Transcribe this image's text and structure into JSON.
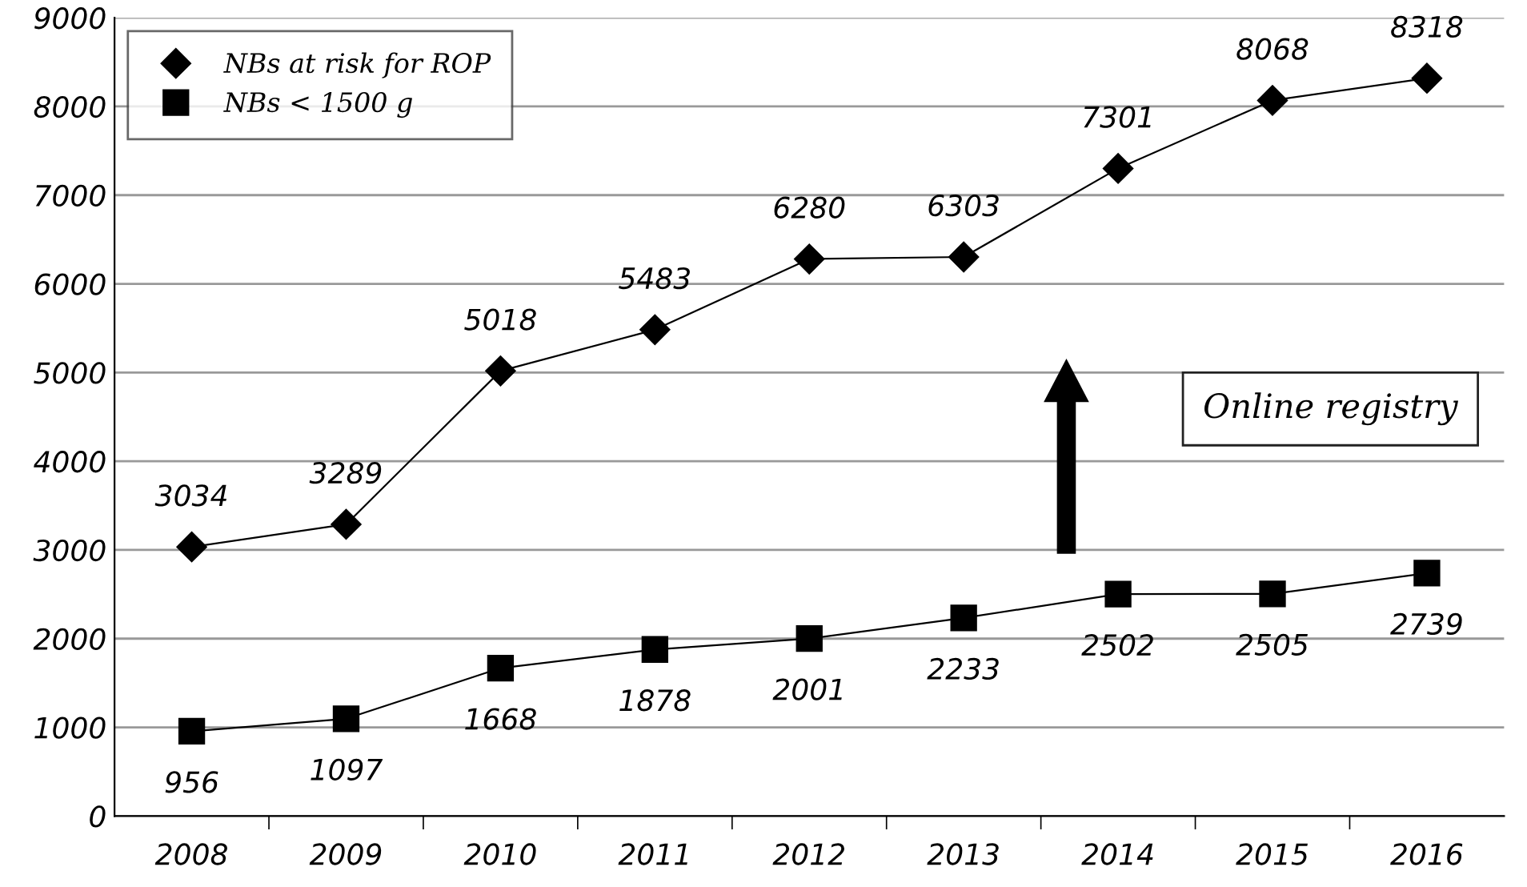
{
  "chart_data": {
    "type": "line",
    "categories": [
      "2008",
      "2009",
      "2010",
      "2011",
      "2012",
      "2013",
      "2014",
      "2015",
      "2016"
    ],
    "series": [
      {
        "name": "NBs at risk for ROP",
        "color": "#000000",
        "marker": "diamond",
        "values": [
          3034,
          3289,
          5018,
          5483,
          6280,
          6303,
          7301,
          8068,
          8318
        ]
      },
      {
        "name": "NBs < 1500 g",
        "color": "#000000",
        "marker": "square",
        "values": [
          956,
          1097,
          1668,
          1878,
          2001,
          2233,
          2502,
          2505,
          2739
        ]
      }
    ],
    "ylim": [
      0,
      9000
    ],
    "yticks": [
      0,
      1000,
      2000,
      3000,
      4000,
      5000,
      6000,
      7000,
      8000,
      9000
    ],
    "grid": "y",
    "legend": "top left",
    "data_labels": true,
    "annotations": [
      "Online registry"
    ]
  }
}
